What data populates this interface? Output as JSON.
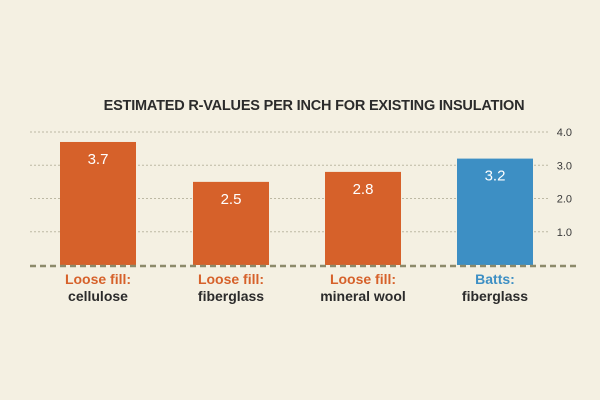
{
  "chart_data": {
    "type": "bar",
    "title": "ESTIMATED R-VALUES PER INCH FOR EXISTING INSULATION",
    "categories": [
      {
        "line1": "Loose fill:",
        "line2": "cellulose"
      },
      {
        "line1": "Loose fill:",
        "line2": "fiberglass"
      },
      {
        "line1": "Loose fill:",
        "line2": "mineral wool"
      },
      {
        "line1": "Batts:",
        "line2": "fiberglass"
      }
    ],
    "values": [
      3.7,
      2.5,
      2.8,
      3.2
    ],
    "value_labels": [
      "3.7",
      "2.5",
      "2.8",
      "3.2"
    ],
    "colors": [
      "#d6612a",
      "#d6612a",
      "#d6612a",
      "#3d8fc4"
    ],
    "y_ticks": [
      {
        "value": 1.0,
        "label": "1.0"
      },
      {
        "value": 2.0,
        "label": "2.0"
      },
      {
        "value": 3.0,
        "label": "3.0"
      },
      {
        "value": 4.0,
        "label": "4.0"
      }
    ],
    "ylim": [
      0,
      4.0
    ],
    "grid": true,
    "grid_style": "dotted",
    "baseline_style": "dashed",
    "baseline_color": "#8c8a6a",
    "grid_color": "#bdb9a4",
    "y_axis_side": "right"
  }
}
